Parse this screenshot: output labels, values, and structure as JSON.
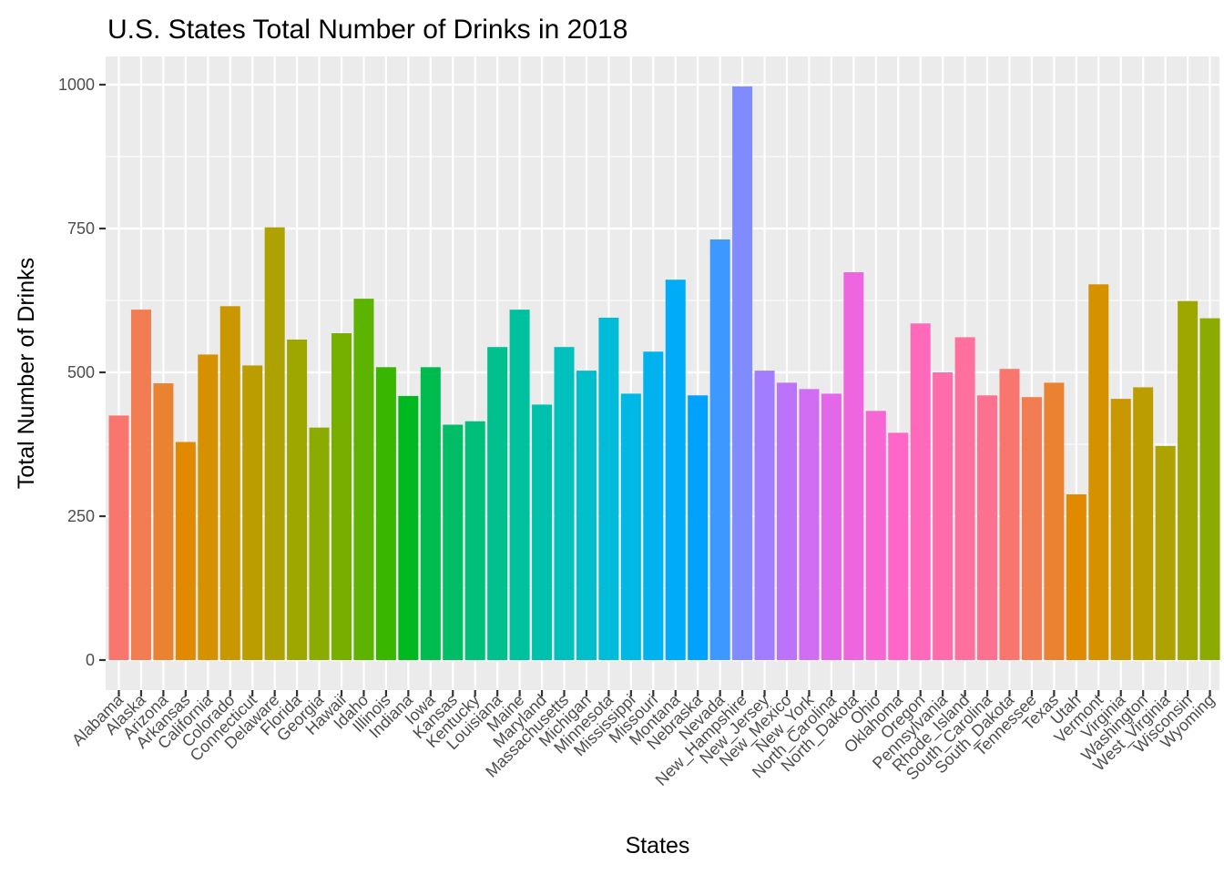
{
  "chart_data": {
    "type": "bar",
    "title": "U.S. States Total Number of Drinks in 2018",
    "xlabel": "States",
    "ylabel": "Total Number of Drinks",
    "ylim": [
      0,
      1050
    ],
    "yticks": [
      0,
      250,
      500,
      750,
      1000
    ],
    "ytick_labels": [
      "0",
      "250",
      "500",
      "750",
      "1000"
    ],
    "grid": true,
    "legend": "none",
    "categories": [
      "Alabama",
      "Alaska",
      "Arizona",
      "Arkansas",
      "California",
      "Colorado",
      "Connecticut",
      "Delaware",
      "Florida",
      "Georgia",
      "Hawaii",
      "Idaho",
      "Illinois",
      "Indiana",
      "Iowa",
      "Kansas",
      "Kentucky",
      "Louisiana",
      "Maine",
      "Maryland",
      "Massachusetts",
      "Michigan",
      "Minnesota",
      "Mississippi",
      "Missouri",
      "Montana",
      "Nebraska",
      "Nevada",
      "New_Hampshire",
      "New_Jersey",
      "New_Mexico",
      "New_York",
      "North_Carolina",
      "North_Dakota",
      "Ohio",
      "Oklahoma",
      "Oregon",
      "Pennsylvania",
      "Rhode_Island",
      "South_Carolina",
      "South_Dakota",
      "Tennessee",
      "Texas",
      "Utah",
      "Vermont",
      "Virginia",
      "Washington",
      "West_Virginia",
      "Wisconsin",
      "Wyoming"
    ],
    "values": [
      425,
      609,
      481,
      379,
      531,
      615,
      512,
      752,
      557,
      404,
      568,
      628,
      509,
      459,
      509,
      409,
      415,
      544,
      609,
      444,
      544,
      503,
      595,
      463,
      536,
      661,
      460,
      731,
      997,
      503,
      482,
      471,
      463,
      674,
      433,
      395,
      585,
      500,
      561,
      460,
      506,
      457,
      482,
      288,
      653,
      454,
      474,
      372,
      624,
      594
    ],
    "colors": [
      "#F8766D",
      "#F27D52",
      "#EA8331",
      "#E18A00",
      "#D69100",
      "#C99800",
      "#BC9D00",
      "#AEA200",
      "#9DA700",
      "#8BAB00",
      "#76AF00",
      "#5CB300",
      "#39B600",
      "#00B81F",
      "#00BB4E",
      "#00BD66",
      "#00BF7B",
      "#00C08D",
      "#00C19E",
      "#00C1AE",
      "#00C0BD",
      "#00BFCB",
      "#00BCD8",
      "#00B8E4",
      "#00B2EE",
      "#00ABF7",
      "#00A2FD",
      "#3D98FF",
      "#7F8BFF",
      "#A27DFF",
      "#BC73FA",
      "#D16DF2",
      "#E268E9",
      "#EE66DF",
      "#F866D4",
      "#FF66C7",
      "#FF69B9",
      "#FF6CAB",
      "#FF709E",
      "#FC7090",
      "#F8766D",
      "#F27D52",
      "#EA8331",
      "#E18A00",
      "#D69100",
      "#C99800",
      "#BC9D00",
      "#AEA200",
      "#9DA700",
      "#8BAB00"
    ]
  }
}
